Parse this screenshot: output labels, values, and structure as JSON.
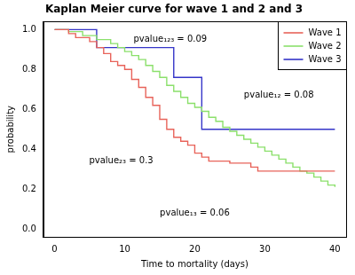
{
  "chart_data": {
    "type": "step",
    "title": "Kaplan Meier curve for wave 1 and 2 and 3",
    "x_label": "Time to mortality (days)",
    "y_label": "probability",
    "xlim": [
      -1.6,
      41.6
    ],
    "xticks": [
      0,
      10,
      20,
      30,
      40
    ],
    "ylim": [
      -0.04,
      1.04
    ],
    "yticks": [
      {
        "value": 0,
        "label": "0.0"
      },
      0.2,
      0.4,
      0.6,
      0.8,
      {
        "value": 1,
        "label": "1.0"
      }
    ],
    "grid": false,
    "legend": "top right",
    "series": [
      {
        "name": "Wave 1",
        "color": "#e8635a",
        "x": [
          0,
          2,
          3,
          5,
          6,
          7,
          8,
          9,
          10,
          11,
          12,
          13,
          14,
          15,
          16,
          17,
          18,
          19,
          20,
          21,
          22,
          25,
          28,
          29,
          40
        ],
        "values": [
          1,
          0.98,
          0.96,
          0.94,
          0.91,
          0.88,
          0.84,
          0.82,
          0.8,
          0.75,
          0.71,
          0.66,
          0.62,
          0.55,
          0.5,
          0.46,
          0.44,
          0.42,
          0.38,
          0.36,
          0.34,
          0.33,
          0.31,
          0.29,
          0.29
        ]
      },
      {
        "name": "Wave 2",
        "color": "#8be06b",
        "x": [
          0,
          2,
          4,
          6,
          8,
          9,
          10,
          11,
          12,
          13,
          14,
          15,
          16,
          17,
          18,
          19,
          20,
          21,
          22,
          23,
          24,
          25,
          26,
          27,
          28,
          29,
          30,
          31,
          32,
          33,
          34,
          35,
          36,
          37,
          38,
          39,
          40
        ],
        "values": [
          1,
          0.99,
          0.97,
          0.95,
          0.93,
          0.91,
          0.89,
          0.87,
          0.85,
          0.82,
          0.79,
          0.76,
          0.72,
          0.69,
          0.66,
          0.63,
          0.61,
          0.59,
          0.56,
          0.54,
          0.51,
          0.49,
          0.47,
          0.45,
          0.43,
          0.41,
          0.39,
          0.37,
          0.35,
          0.33,
          0.31,
          0.29,
          0.28,
          0.26,
          0.24,
          0.22,
          0.21
        ]
      },
      {
        "name": "Wave 3",
        "color": "#3535c8",
        "x": [
          0,
          6,
          17,
          21,
          40
        ],
        "values": [
          1,
          0.91,
          0.76,
          0.5,
          0.5
        ]
      }
    ],
    "annotations": [
      {
        "text": "pvalue₁₂₃ = 0.09",
        "x": 16.5,
        "y": 0.95
      },
      {
        "text": "pvalue₁₂ = 0.08",
        "x": 32,
        "y": 0.67
      },
      {
        "text": "pvalue₂₃ = 0.3",
        "x": 9.5,
        "y": 0.34
      },
      {
        "text": "pvalue₁₃ = 0.06",
        "x": 20,
        "y": 0.08
      }
    ]
  }
}
